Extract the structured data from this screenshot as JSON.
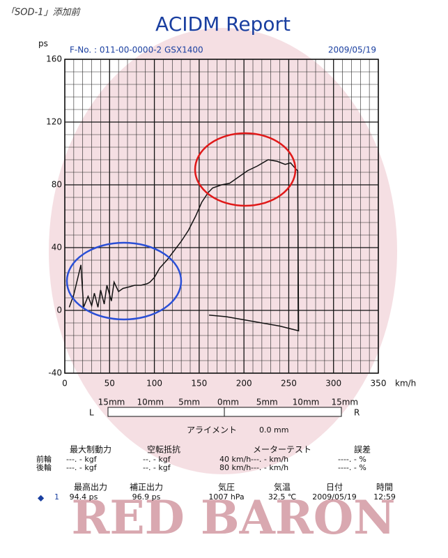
{
  "note": "「SOD-1」添加前",
  "header": {
    "title": "ACIDM Report"
  },
  "chart_data": {
    "type": "line",
    "info": "F-No. : 011-00-0000-2   GSX1400",
    "date": "2009/05/19",
    "y_label": "ps",
    "x_label": "km/h",
    "x": [
      5,
      10,
      18,
      21,
      26,
      30,
      33,
      37,
      40,
      44,
      47,
      52,
      55,
      60,
      65,
      72,
      78,
      85,
      92,
      95,
      100,
      106,
      114,
      122,
      130,
      138,
      146,
      153,
      160,
      165,
      175,
      184,
      194,
      204,
      215,
      227,
      237,
      246,
      252,
      258,
      260,
      261,
      240,
      220,
      200,
      180,
      161
    ],
    "series": [
      {
        "color": "#111111",
        "values": [
          2,
          10,
          29,
          2,
          9,
          3,
          11,
          2,
          13,
          4,
          16,
          6,
          18,
          12,
          14,
          15,
          16,
          16,
          17,
          18,
          21,
          27,
          32,
          38,
          44,
          51,
          60,
          69,
          75,
          78,
          80,
          81,
          85,
          89,
          92,
          96,
          95,
          93,
          94,
          90,
          89,
          -13,
          -10,
          -8,
          -6,
          -4,
          -3
        ]
      }
    ],
    "xlim": [
      0,
      350
    ],
    "ylim": [
      -40,
      160
    ],
    "xticks": [
      0,
      50,
      100,
      150,
      200,
      250,
      300,
      350
    ],
    "yticks": [
      -40,
      0,
      40,
      80,
      120,
      160
    ],
    "grid": true
  },
  "alignment": {
    "scale": [
      "15mm",
      "10mm",
      "5mm",
      "0mm",
      "5mm",
      "10mm",
      "15mm"
    ],
    "left": "L",
    "right": "R",
    "label": "アライメント",
    "value": "0.0 mm"
  },
  "brake_table": {
    "headers": [
      "最大制動力",
      "空転抵抗",
      "メーターテスト",
      "誤差"
    ],
    "rows": [
      [
        "前輪",
        "---. - kgf",
        "--. - kgf",
        "40 km/h",
        "---. - km/h",
        "----. - %"
      ],
      [
        "後輪",
        "---. - kgf",
        "--. - kgf",
        "80 km/h",
        "---. - km/h",
        "----. - %"
      ]
    ]
  },
  "result_table": {
    "headers": [
      "最高出力",
      "補正出力",
      "気圧",
      "気温",
      "日付",
      "時間"
    ],
    "row": [
      "1",
      "94.4 ps",
      "96.9 ps",
      "1007 hPa",
      "32.5 ℃",
      "2009/05/19",
      "12:59"
    ]
  },
  "watermark": "RED BARON"
}
